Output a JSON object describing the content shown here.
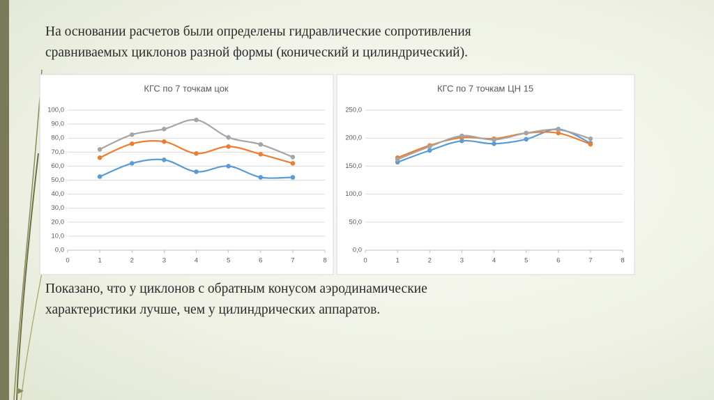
{
  "slide": {
    "heading": [
      "На основании расчетов были  определены гидравлические сопротивления",
      "сравниваемых циклонов разной формы (конический и цилиндрический)."
    ],
    "conclusion": [
      "Показано, что у циклонов с обратным конусом аэродинамические",
      "характеристики лучше, чем у цилиндрических аппаратов."
    ]
  },
  "chart_data": [
    {
      "type": "line",
      "title": "КГС по 7 точкам цок",
      "x": [
        1,
        2,
        3,
        4,
        5,
        6,
        7
      ],
      "xlim": [
        0,
        8
      ],
      "xticks": [
        0,
        1,
        2,
        3,
        4,
        5,
        6,
        7,
        8
      ],
      "ylim": [
        0,
        100
      ],
      "yticks": [
        {
          "value": 0,
          "label": "0,0"
        },
        {
          "value": 10,
          "label": "10,0"
        },
        {
          "value": 20,
          "label": "20,0"
        },
        {
          "value": 30,
          "label": "30,0"
        },
        {
          "value": 40,
          "label": "40,0"
        },
        {
          "value": 50,
          "label": "50,0"
        },
        {
          "value": 60,
          "label": "60,0"
        },
        {
          "value": 70,
          "label": "70,0"
        },
        {
          "value": 80,
          "label": "80,0"
        },
        {
          "value": 90,
          "label": "90,0"
        },
        {
          "value": 100,
          "label": "100,0"
        }
      ],
      "grid": true,
      "series": [
        {
          "color": "#5b9bd5",
          "values": [
            52.5,
            62,
            64.5,
            56,
            60,
            52,
            52
          ]
        },
        {
          "color": "#ed7d31",
          "values": [
            66,
            76,
            77.5,
            69,
            74,
            68.5,
            62
          ]
        },
        {
          "color": "#a5a5a5",
          "values": [
            72,
            82.5,
            86.5,
            93,
            80.5,
            75.5,
            66.5
          ]
        }
      ]
    },
    {
      "type": "line",
      "title": "КГС по 7 точкам ЦН 15",
      "x": [
        1,
        2,
        3,
        4,
        5,
        6,
        7
      ],
      "xlim": [
        0,
        8
      ],
      "xticks": [
        0,
        1,
        2,
        3,
        4,
        5,
        6,
        7,
        8
      ],
      "ylim": [
        0,
        250
      ],
      "yticks": [
        {
          "value": 0,
          "label": "0,0"
        },
        {
          "value": 50,
          "label": "50,0"
        },
        {
          "value": 100,
          "label": "100,0"
        },
        {
          "value": 150,
          "label": "150,0"
        },
        {
          "value": 200,
          "label": "200,0"
        },
        {
          "value": 250,
          "label": "250,0"
        }
      ],
      "grid": true,
      "series": [
        {
          "color": "#5b9bd5",
          "values": [
            157,
            178,
            195,
            190,
            198,
            216,
            191
          ]
        },
        {
          "color": "#ed7d31",
          "values": [
            165,
            187,
            201,
            199,
            209,
            209,
            189
          ]
        },
        {
          "color": "#a5a5a5",
          "values": [
            162,
            185,
            204,
            197,
            209,
            215,
            199
          ]
        }
      ]
    }
  ]
}
